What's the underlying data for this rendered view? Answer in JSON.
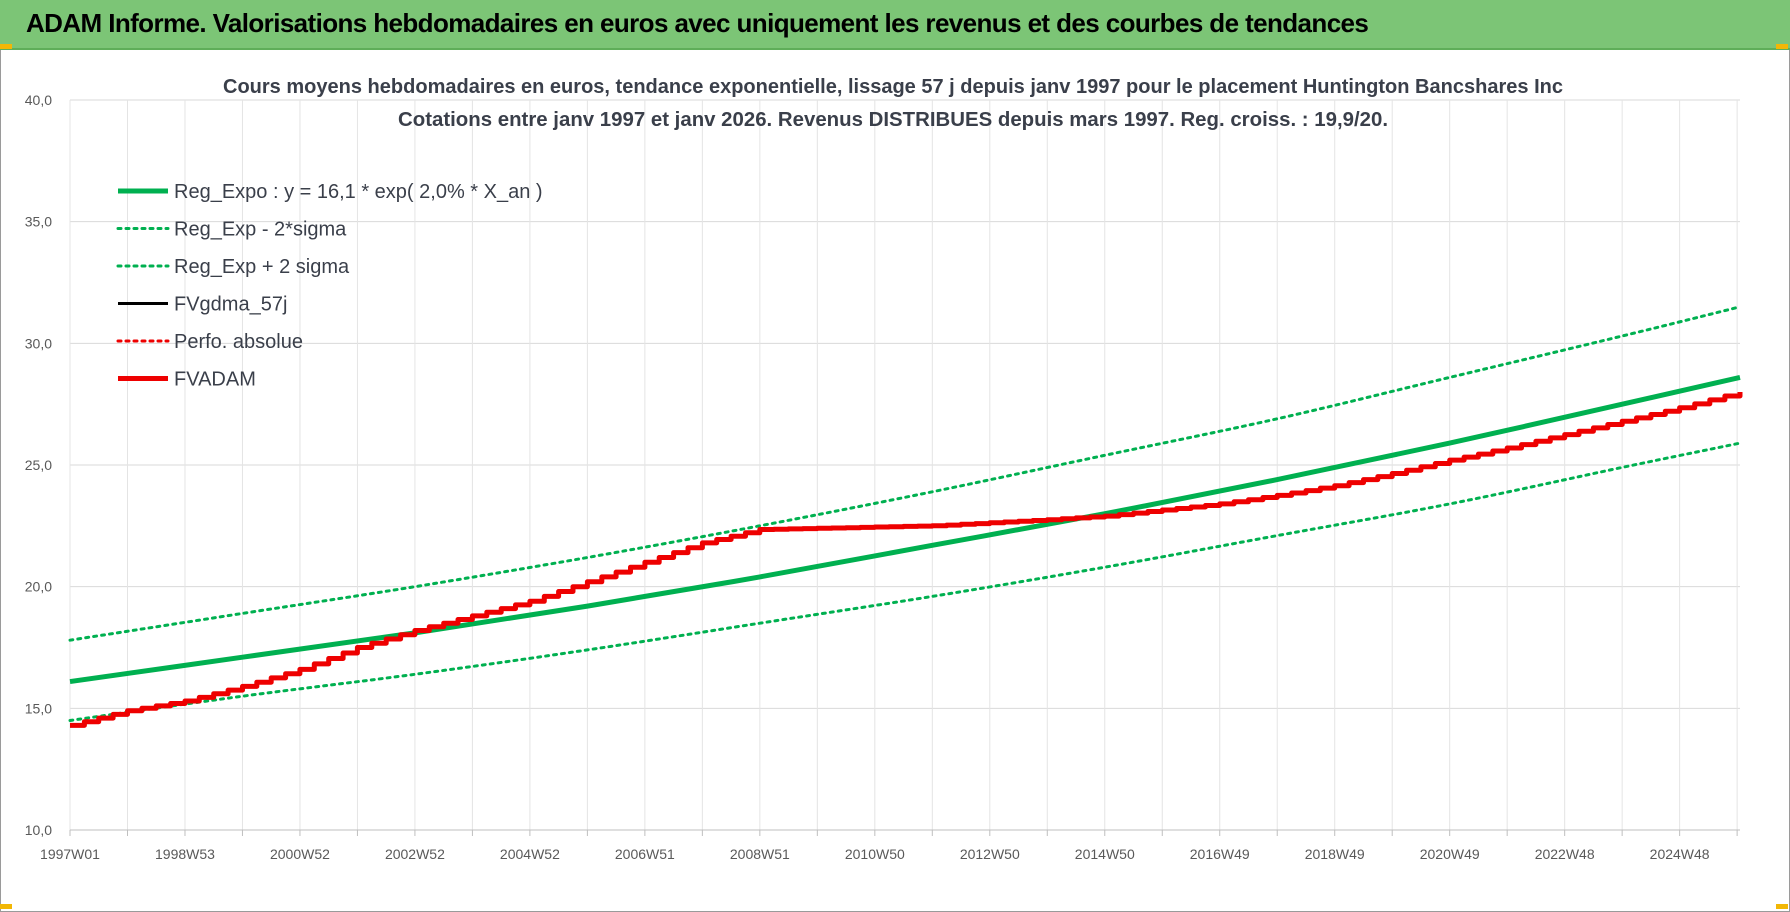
{
  "banner": {
    "title": "ADAM Informe. Valorisations hebdomadaires en euros avec uniquement les revenus et des courbes de tendances"
  },
  "chart_data": {
    "type": "line",
    "title_line1": "Cours moyens hebdomadaires en euros, tendance exponentielle, lissage 57 j depuis janv 1997 pour le placement Huntington Bancshares Inc",
    "title_line2": "Cotations entre janv 1997 et janv 2026. Revenus DISTRIBUES depuis mars 1997. Reg. croiss. : 19,9/20.",
    "xlim": [
      1997.0,
      2026.05
    ],
    "ylim": [
      10,
      40
    ],
    "yticks": [
      "10,0",
      "15,0",
      "20,0",
      "25,0",
      "30,0",
      "35,0",
      "40,0"
    ],
    "ytick_values": [
      10,
      15,
      20,
      25,
      30,
      35,
      40
    ],
    "xticks": [
      "1997W01",
      "1998W53",
      "2000W52",
      "2002W52",
      "2004W52",
      "2006W51",
      "2008W51",
      "2010W50",
      "2012W50",
      "2014W50",
      "2016W49",
      "2018W49",
      "2020W49",
      "2022W48",
      "2024W48"
    ],
    "xtick_values": [
      1997.0,
      1999.0,
      2001.0,
      2003.0,
      2005.0,
      2007.0,
      2009.0,
      2011.0,
      2013.0,
      2015.0,
      2017.0,
      2019.0,
      2021.0,
      2023.0,
      2025.0
    ],
    "grid": true,
    "legend_position": "top-left",
    "colors": {
      "green": "#00b050",
      "red": "#ee0000",
      "black": "#000000"
    },
    "series": [
      {
        "name": "Reg_Expo : y = 16,1 * exp( 2,0% *  X_an )",
        "style": "solid-thick",
        "color": "#00b050",
        "x": [
          1997,
          2000,
          2003,
          2006,
          2009,
          2012,
          2015,
          2018,
          2021,
          2024,
          2026.05
        ],
        "y": [
          16.1,
          17.1,
          18.1,
          19.2,
          20.4,
          21.7,
          23.0,
          24.4,
          25.9,
          27.5,
          28.6
        ]
      },
      {
        "name": "Reg_Exp - 2*sigma",
        "style": "dotted",
        "color": "#00b050",
        "x": [
          1997,
          2000,
          2003,
          2006,
          2009,
          2012,
          2015,
          2018,
          2021,
          2024,
          2026.05
        ],
        "y": [
          14.5,
          15.5,
          16.4,
          17.4,
          18.5,
          19.6,
          20.8,
          22.1,
          23.4,
          24.9,
          25.9
        ]
      },
      {
        "name": "Reg_Exp + 2 sigma",
        "style": "dotted",
        "color": "#00b050",
        "x": [
          1997,
          2000,
          2003,
          2006,
          2009,
          2012,
          2015,
          2018,
          2021,
          2024,
          2026.05
        ],
        "y": [
          17.8,
          18.9,
          20.0,
          21.2,
          22.5,
          23.9,
          25.4,
          26.9,
          28.6,
          30.3,
          31.5
        ]
      },
      {
        "name": "FVgdma_57j",
        "style": "solid",
        "color": "#000000",
        "x": [],
        "y": []
      },
      {
        "name": "Perfo. absolue",
        "style": "dotted",
        "color": "#ee0000",
        "x": [],
        "y": []
      },
      {
        "name": "FVADAM",
        "style": "solid-thick-stepped",
        "color": "#ee0000",
        "x": [
          1997.0,
          1997.5,
          1998.0,
          1999.0,
          2000.0,
          2001.0,
          2002.0,
          2003.0,
          2004.0,
          2005.0,
          2006.0,
          2007.0,
          2008.0,
          2009.0,
          2010.0,
          2012.0,
          2014.0,
          2015.0,
          2016.0,
          2017.0,
          2018.0,
          2019.0,
          2020.0,
          2021.0,
          2022.0,
          2023.0,
          2024.0,
          2025.0,
          2026.05
        ],
        "y": [
          14.3,
          14.6,
          14.9,
          15.3,
          15.9,
          16.6,
          17.5,
          18.2,
          18.8,
          19.4,
          20.2,
          21.0,
          21.8,
          22.35,
          22.4,
          22.5,
          22.75,
          22.9,
          23.15,
          23.4,
          23.75,
          24.15,
          24.65,
          25.2,
          25.7,
          26.25,
          26.8,
          27.35,
          28.0
        ]
      }
    ]
  }
}
